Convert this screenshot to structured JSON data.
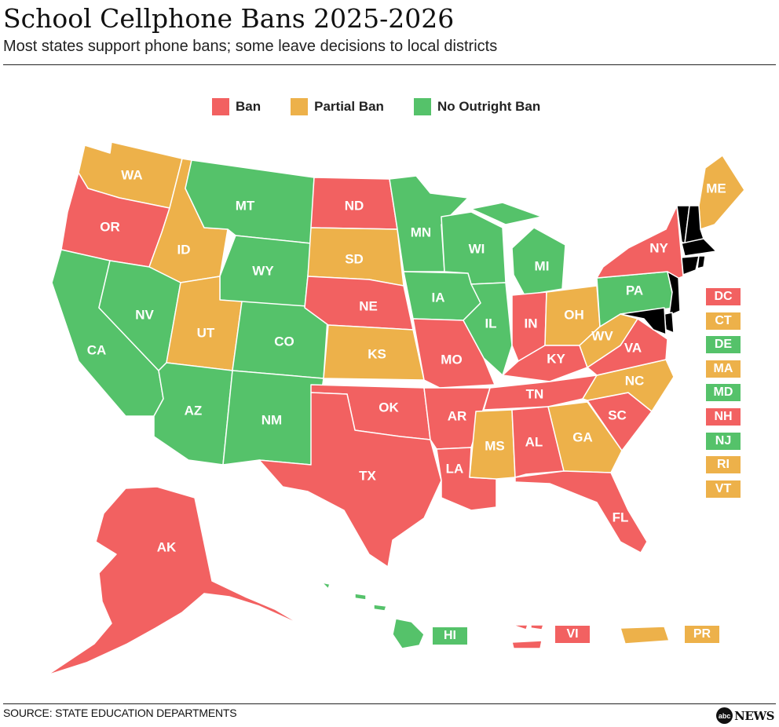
{
  "title": "School Cellphone Bans 2025-2026",
  "subtitle": "Most states support phone bans; some leave decisions to local districts",
  "colors": {
    "ban": "#f26161",
    "partial": "#edb14a",
    "none": "#55c26a"
  },
  "legend": [
    {
      "label": "Ban",
      "status": "ban"
    },
    {
      "label": "Partial Ban",
      "status": "partial"
    },
    {
      "label": "No Outright Ban",
      "status": "none"
    }
  ],
  "states": {
    "WA": "partial",
    "OR": "ban",
    "CA": "none",
    "ID": "partial",
    "NV": "none",
    "MT": "none",
    "WY": "none",
    "UT": "partial",
    "AZ": "none",
    "CO": "none",
    "NM": "none",
    "ND": "ban",
    "SD": "partial",
    "NE": "ban",
    "KS": "partial",
    "OK": "ban",
    "TX": "ban",
    "MN": "none",
    "IA": "none",
    "MO": "ban",
    "AR": "ban",
    "LA": "ban",
    "WI": "none",
    "IL": "none",
    "MI": "none",
    "IN": "ban",
    "OH": "partial",
    "KY": "ban",
    "TN": "ban",
    "MS": "partial",
    "AL": "ban",
    "GA": "partial",
    "FL": "ban",
    "SC": "ban",
    "NC": "partial",
    "VA": "ban",
    "WV": "partial",
    "PA": "none",
    "NY": "ban",
    "ME": "partial",
    "AK": "ban",
    "HI": "none",
    "VI": "ban",
    "PR": "partial"
  },
  "small_states": [
    {
      "code": "DC",
      "status": "ban"
    },
    {
      "code": "CT",
      "status": "partial"
    },
    {
      "code": "DE",
      "status": "none"
    },
    {
      "code": "MA",
      "status": "partial"
    },
    {
      "code": "MD",
      "status": "none"
    },
    {
      "code": "NH",
      "status": "ban"
    },
    {
      "code": "NJ",
      "status": "none"
    },
    {
      "code": "RI",
      "status": "partial"
    },
    {
      "code": "VT",
      "status": "partial"
    }
  ],
  "territories": {
    "HI": "HI",
    "VI": "VI",
    "PR": "PR"
  },
  "source": "SOURCE: STATE EDUCATION DEPARTMENTS",
  "logo": {
    "mark": "abc",
    "text": "NEWS"
  }
}
